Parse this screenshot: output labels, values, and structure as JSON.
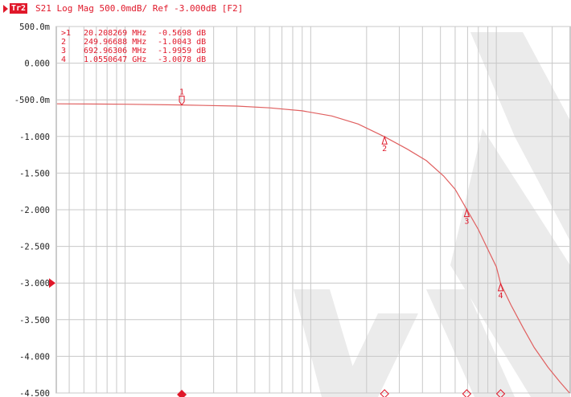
{
  "header": {
    "trace_tag": "Tr2",
    "status": "S21 Log Mag 500.0mdB/ Ref -3.000dB [F2]"
  },
  "colors": {
    "trace": "#e06060",
    "accent": "#e0182a",
    "grid": "#c8c8c8",
    "watermark": "#ebebeb"
  },
  "marker_table": [
    {
      "label": ">1",
      "freq": "20.208269 MHz",
      "value": "-0.5698 dB"
    },
    {
      "label": "2",
      "freq": "249.96688 MHz",
      "value": "-1.0043 dB"
    },
    {
      "label": "3",
      "freq": "692.96306 MHz",
      "value": "-1.9959 dB"
    },
    {
      "label": "4",
      "freq": "1.0550647 GHz",
      "value": "-3.0078 dB"
    }
  ],
  "chart_data": {
    "type": "line",
    "y_scale": "linear",
    "ylim": [
      -4.5,
      0.5
    ],
    "reference_level": -3.0,
    "x_scale": "log",
    "xlim_mhz": [
      4.26,
      2500
    ],
    "y_tick_labels": [
      "500.0m",
      "0.000",
      "-500.0m",
      "-1.000",
      "-1.500",
      "-2.000",
      "-2.500",
      "-3.000",
      "-3.500",
      "-4.000",
      "-4.500"
    ],
    "y_tick_values": [
      0.5,
      0.0,
      -0.5,
      -1.0,
      -1.5,
      -2.0,
      -2.5,
      -3.0,
      -3.5,
      -4.0,
      -4.5
    ],
    "grid": true,
    "series": [
      {
        "x_mhz": [
          4.3,
          10,
          20.2,
          40,
          60,
          90,
          130,
          180,
          250,
          330,
          420,
          520,
          600,
          693,
          800,
          900,
          1000,
          1055,
          1200,
          1400,
          1600,
          1900,
          2200,
          2480
        ],
        "y_db": [
          -0.555,
          -0.56,
          -0.5698,
          -0.585,
          -0.61,
          -0.65,
          -0.72,
          -0.83,
          -1.0043,
          -1.17,
          -1.33,
          -1.54,
          -1.72,
          -1.9959,
          -2.27,
          -2.54,
          -2.78,
          -3.0078,
          -3.3,
          -3.62,
          -3.88,
          -4.15,
          -4.35,
          -4.5
        ]
      }
    ],
    "markers": [
      {
        "label": "1",
        "x_mhz": 20.208269,
        "y_db": -0.5698
      },
      {
        "label": "2",
        "x_mhz": 249.96688,
        "y_db": -1.0043
      },
      {
        "label": "3",
        "x_mhz": 692.96306,
        "y_db": -1.9959
      },
      {
        "label": "4",
        "x_mhz": 1055.0647,
        "y_db": -3.0078
      }
    ]
  }
}
